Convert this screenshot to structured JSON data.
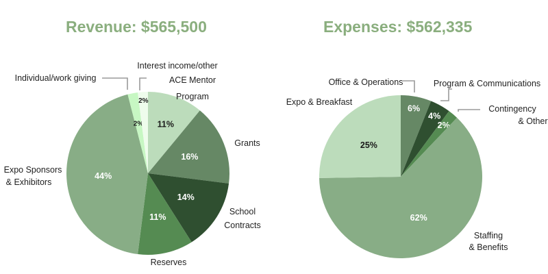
{
  "chart_data": [
    {
      "type": "pie",
      "title": "Revenue: $565,500",
      "slices": [
        {
          "label": "ACE Mentor Program",
          "value": 11,
          "pct_label": "11%",
          "color": "#bcdcbb",
          "text_color": "#1a1a1a"
        },
        {
          "label": "Grants",
          "value": 16,
          "pct_label": "16%",
          "color": "#668865",
          "text_color": "#ffffff"
        },
        {
          "label": "School Contracts",
          "value": 14,
          "pct_label": "14%",
          "color": "#2f4f30",
          "text_color": "#ffffff"
        },
        {
          "label": "Reserves",
          "value": 11,
          "pct_label": "11%",
          "color": "#558b52",
          "text_color": "#ffffff"
        },
        {
          "label": "Expo Sponsors & Exhibitors",
          "value": 44,
          "pct_label": "44%",
          "color": "#88ad86",
          "text_color": "#ffffff"
        },
        {
          "label": "Individual/work giving",
          "value": 2,
          "pct_label": "2%",
          "color": "#c7f7c3",
          "text_color": "#1a1a1a"
        },
        {
          "label": "Interest income/other",
          "value": 2,
          "pct_label": "2%",
          "color": "#eefcec",
          "text_color": "#1a1a1a"
        }
      ]
    },
    {
      "type": "pie",
      "title": "Expenses: $562,335",
      "slices": [
        {
          "label": "Office & Operations",
          "value": 6,
          "pct_label": "6%",
          "color": "#668865",
          "text_color": "#ffffff"
        },
        {
          "label": "Program & Communications",
          "value": 4,
          "pct_label": "4%",
          "color": "#2f4f30",
          "text_color": "#ffffff"
        },
        {
          "label": "Contingency & Other",
          "value": 2,
          "pct_label": "2%",
          "color": "#558b52",
          "text_color": "#ffffff"
        },
        {
          "label": "Staffing & Benefits",
          "value": 62,
          "pct_label": "62%",
          "color": "#88ad86",
          "text_color": "#ffffff"
        },
        {
          "label": "Expo & Breakfast",
          "value": 25,
          "pct_label": "25%",
          "color": "#bcdcbb",
          "text_color": "#1a1a1a"
        }
      ]
    }
  ]
}
